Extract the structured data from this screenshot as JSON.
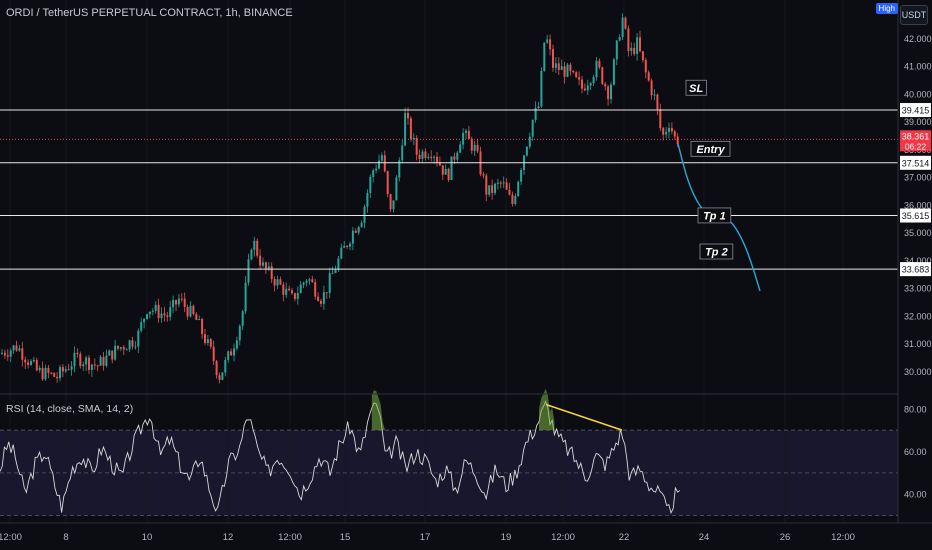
{
  "header": {
    "symbol_title": "ORDI / TetherUS PERPETUAL CONTRACT, 1h, BINANCE",
    "currency_button": "USDT",
    "high_badge": "High"
  },
  "rsi_legend": "RSI (14, close, SMA, 14, 2)",
  "colors": {
    "bull": "#26a69a",
    "bear": "#ef5350",
    "level_line": "#e8e8e8",
    "projection": "#29a8d6",
    "divergence": "#f5d33a",
    "rsi_line": "#d8d8d8",
    "overbought_fill": "#7cb342",
    "current_price_bg": "#f23645"
  },
  "chart_data": [
    {
      "type": "candlestick",
      "title": "ORDI / TetherUS PERPETUAL CONTRACT, 1h, BINANCE",
      "y_axis_ticks": [
        30.0,
        31.0,
        32.0,
        33.0,
        34.0,
        35.0,
        36.0,
        37.0,
        38.0,
        39.0,
        40.0,
        41.0,
        42.0
      ],
      "ylim": [
        29.4,
        43.2
      ],
      "x_ticks": [
        "12:00",
        "8",
        "10",
        "12",
        "12:00",
        "15",
        "17",
        "19",
        "12:00",
        "22",
        "24",
        "26",
        "12:00"
      ],
      "price_path": [
        [
          0,
          30.6
        ],
        [
          20,
          30.9
        ],
        [
          40,
          30.0
        ],
        [
          60,
          29.8
        ],
        [
          80,
          30.5
        ],
        [
          100,
          30.2
        ],
        [
          120,
          30.8
        ],
        [
          140,
          31.2
        ],
        [
          150,
          32.3
        ],
        [
          170,
          32.0
        ],
        [
          182,
          32.6
        ],
        [
          200,
          31.8
        ],
        [
          215,
          30.6
        ],
        [
          222,
          29.8
        ],
        [
          235,
          30.8
        ],
        [
          245,
          32.0
        ],
        [
          255,
          34.8
        ],
        [
          265,
          33.8
        ],
        [
          280,
          33.2
        ],
        [
          295,
          32.6
        ],
        [
          310,
          33.4
        ],
        [
          325,
          32.6
        ],
        [
          340,
          33.9
        ],
        [
          355,
          35.0
        ],
        [
          365,
          35.6
        ],
        [
          375,
          37.2
        ],
        [
          385,
          37.8
        ],
        [
          393,
          35.6
        ],
        [
          400,
          37.0
        ],
        [
          408,
          39.2
        ],
        [
          420,
          37.8
        ],
        [
          435,
          38.0
        ],
        [
          450,
          37.0
        ],
        [
          465,
          38.6
        ],
        [
          478,
          38.0
        ],
        [
          490,
          36.4
        ],
        [
          505,
          36.8
        ],
        [
          515,
          36.0
        ],
        [
          525,
          37.6
        ],
        [
          535,
          39.0
        ],
        [
          542,
          39.6
        ],
        [
          548,
          42.2
        ],
        [
          556,
          41.0
        ],
        [
          570,
          40.8
        ],
        [
          585,
          40.2
        ],
        [
          600,
          41.0
        ],
        [
          612,
          40.0
        ],
        [
          625,
          42.8
        ],
        [
          632,
          41.4
        ],
        [
          640,
          41.8
        ],
        [
          648,
          40.8
        ],
        [
          658,
          39.8
        ],
        [
          665,
          38.4
        ],
        [
          672,
          39.0
        ],
        [
          678,
          38.36
        ]
      ],
      "levels": [
        {
          "price": 39.415,
          "label": "39.415"
        },
        {
          "price": 37.514,
          "label": "37.514"
        },
        {
          "price": 35.615,
          "label": "35.615"
        },
        {
          "price": 33.683,
          "label": "33.683"
        }
      ],
      "current_price": {
        "price": 38.361,
        "label": "38.361",
        "countdown": "06:22"
      },
      "annotations": [
        {
          "text": "SL",
          "price": 40.2
        },
        {
          "text": "Entry",
          "price": 38.0
        },
        {
          "text": "Tp 1",
          "price": 35.6
        },
        {
          "text": "Tp 2",
          "price": 34.3
        }
      ],
      "projection_path": [
        [
          678,
          38.2
        ],
        [
          688,
          36.8
        ],
        [
          700,
          35.9
        ],
        [
          712,
          35.55
        ],
        [
          724,
          35.62
        ],
        [
          736,
          35.2
        ],
        [
          748,
          34.3
        ],
        [
          760,
          32.9
        ]
      ]
    },
    {
      "type": "line",
      "title": "RSI (14, close, SMA, 14, 2)",
      "y_axis_ticks": [
        40.0,
        60.0,
        80.0
      ],
      "ylim": [
        27,
        86
      ],
      "guide_levels": [
        70,
        50,
        30
      ],
      "rsi_path": [
        [
          0,
          52
        ],
        [
          8,
          64
        ],
        [
          15,
          58
        ],
        [
          25,
          40
        ],
        [
          35,
          54
        ],
        [
          45,
          60
        ],
        [
          55,
          44
        ],
        [
          62,
          34
        ],
        [
          72,
          52
        ],
        [
          82,
          58
        ],
        [
          92,
          50
        ],
        [
          102,
          62
        ],
        [
          112,
          54
        ],
        [
          122,
          48
        ],
        [
          132,
          62
        ],
        [
          142,
          72
        ],
        [
          150,
          78
        ],
        [
          160,
          58
        ],
        [
          170,
          66
        ],
        [
          180,
          54
        ],
        [
          190,
          46
        ],
        [
          200,
          58
        ],
        [
          210,
          42
        ],
        [
          218,
          31
        ],
        [
          228,
          54
        ],
        [
          240,
          62
        ],
        [
          248,
          78
        ],
        [
          258,
          60
        ],
        [
          268,
          50
        ],
        [
          278,
          58
        ],
        [
          290,
          52
        ],
        [
          300,
          40
        ],
        [
          310,
          48
        ],
        [
          320,
          58
        ],
        [
          330,
          50
        ],
        [
          340,
          64
        ],
        [
          350,
          72
        ],
        [
          360,
          58
        ],
        [
          370,
          78
        ],
        [
          378,
          82
        ],
        [
          386,
          56
        ],
        [
          396,
          64
        ],
        [
          406,
          52
        ],
        [
          416,
          60
        ],
        [
          426,
          56
        ],
        [
          436,
          46
        ],
        [
          446,
          52
        ],
        [
          456,
          42
        ],
        [
          466,
          56
        ],
        [
          476,
          50
        ],
        [
          486,
          40
        ],
        [
          496,
          52
        ],
        [
          506,
          44
        ],
        [
          516,
          50
        ],
        [
          526,
          64
        ],
        [
          536,
          72
        ],
        [
          546,
          82
        ],
        [
          556,
          68
        ],
        [
          566,
          62
        ],
        [
          576,
          56
        ],
        [
          586,
          48
        ],
        [
          596,
          58
        ],
        [
          606,
          54
        ],
        [
          614,
          62
        ],
        [
          622,
          70
        ],
        [
          630,
          48
        ],
        [
          640,
          52
        ],
        [
          650,
          44
        ],
        [
          660,
          40
        ],
        [
          668,
          31
        ],
        [
          676,
          40
        ],
        [
          680,
          38
        ]
      ],
      "divergence_line": [
        [
          546,
          82
        ],
        [
          622,
          70
        ]
      ],
      "overbought_humps": [
        [
          370,
          386
        ],
        [
          538,
          556
        ]
      ]
    }
  ]
}
